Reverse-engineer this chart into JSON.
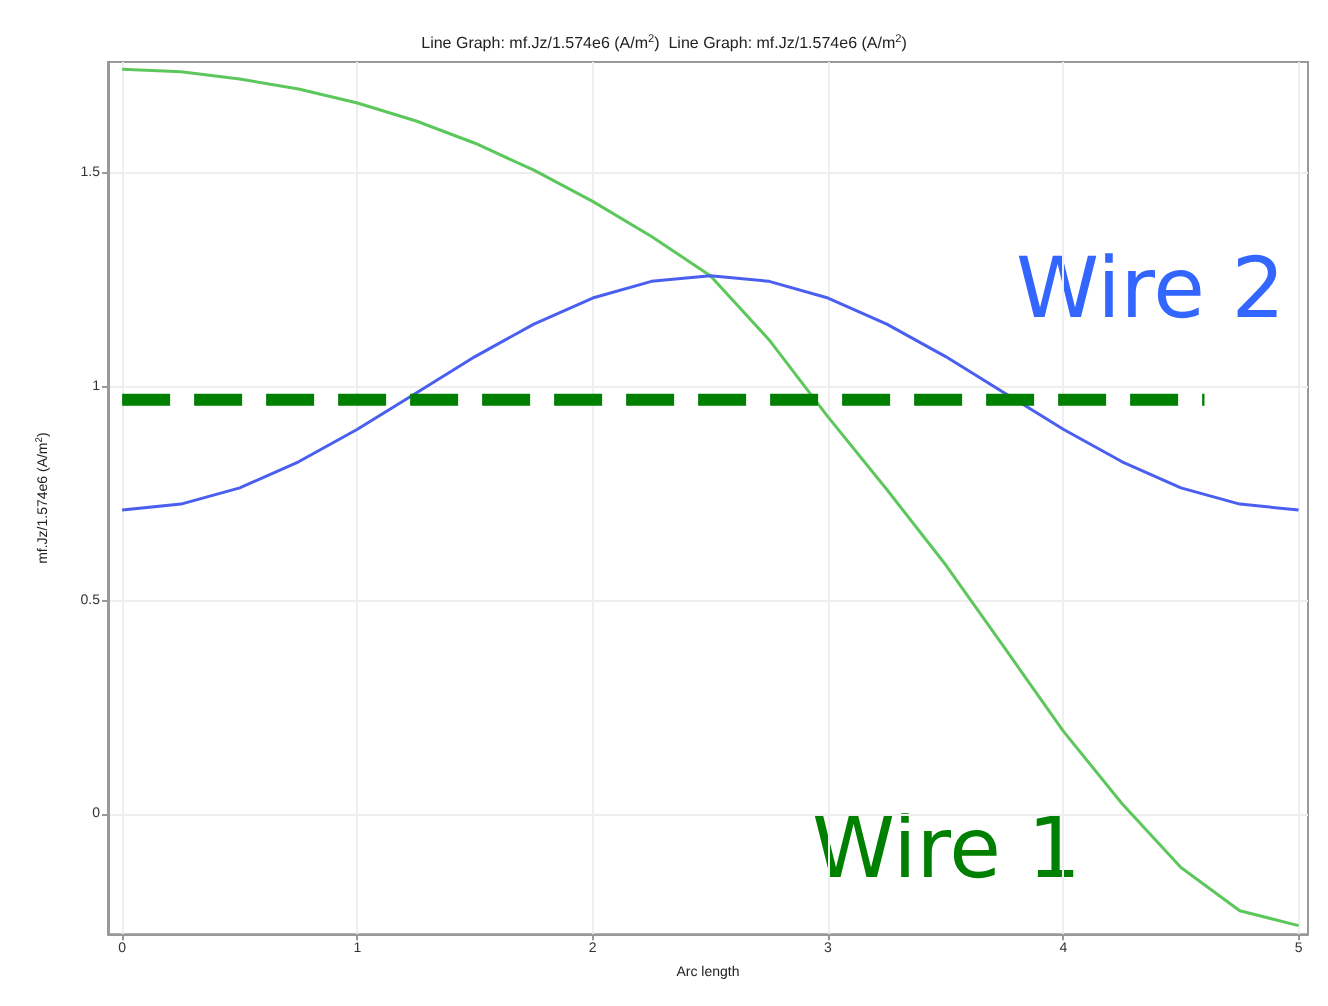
{
  "chart_data": {
    "type": "line",
    "title": "Line Graph: mf.Jz/1.574e6 (A/m$^{2}$)  Line Graph: mf.Jz/1.574e6 (A/m$^{2}$)",
    "xlabel": "Arc length",
    "ylabel": "mf.Jz/1.574e6 (A/m$^{2}$)",
    "xlim": [
      -0.06,
      5.04
    ],
    "xticks": [
      0,
      1,
      2,
      3,
      4,
      5
    ],
    "ylim": [
      -0.28,
      1.76
    ],
    "yticks": [
      0,
      0.5,
      1,
      1.5
    ],
    "grid": true,
    "legend": false,
    "marker": "none",
    "series": [
      {
        "name": "Wire 1",
        "color": "#5cc85c",
        "x": [
          0,
          0.25,
          0.5,
          0.75,
          1,
          1.25,
          1.5,
          1.75,
          2,
          2.25,
          2.5,
          2.75,
          3,
          3.25,
          3.5,
          3.75,
          4,
          4.25,
          4.5,
          4.75,
          5
        ],
        "values": [
          1.743,
          1.737,
          1.72,
          1.697,
          1.664,
          1.622,
          1.57,
          1.507,
          1.434,
          1.352,
          1.26,
          1.11,
          0.93,
          0.76,
          0.584,
          0.39,
          0.195,
          0.025,
          -0.124,
          -0.225,
          -0.26
        ]
      },
      {
        "name": "Wire 2",
        "color": "#4a5ff0",
        "x": [
          0,
          0.25,
          0.5,
          0.75,
          1,
          1.25,
          1.5,
          1.75,
          2,
          2.25,
          2.5,
          2.75,
          3,
          3.25,
          3.5,
          3.75,
          4,
          4.25,
          4.5,
          4.75,
          5
        ],
        "values": [
          0.712,
          0.726,
          0.764,
          0.825,
          0.901,
          0.986,
          1.071,
          1.147,
          1.208,
          1.247,
          1.26,
          1.247,
          1.208,
          1.147,
          1.071,
          0.986,
          0.901,
          0.825,
          0.764,
          0.726,
          0.712
        ]
      },
      {
        "color": "#008000",
        "line_style": "dashed",
        "x": [
          0,
          4.6
        ],
        "values": [
          0.97,
          0.97
        ]
      }
    ]
  }
}
